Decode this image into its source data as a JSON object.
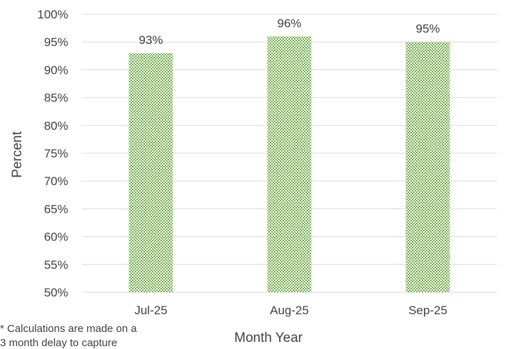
{
  "chart_data": {
    "type": "bar",
    "categories": [
      "Jul-25",
      "Aug-25",
      "Sep-25"
    ],
    "values": [
      93,
      96,
      95
    ],
    "data_labels": [
      "93%",
      "96%",
      "95%"
    ],
    "ylabel": "Percent",
    "xlabel": "Month Year",
    "ylim": [
      50,
      100
    ],
    "yticks": [
      "100%",
      "95%",
      "90%",
      "85%",
      "80%",
      "75%",
      "70%",
      "65%",
      "60%",
      "55%",
      "50%"
    ],
    "grid": "horizontal",
    "bar_color": "#70ad47",
    "bar_pattern": "checkerboard"
  },
  "footnote": {
    "line1": "* Calculations are made on a",
    "line2": "3 month delay to capture"
  }
}
